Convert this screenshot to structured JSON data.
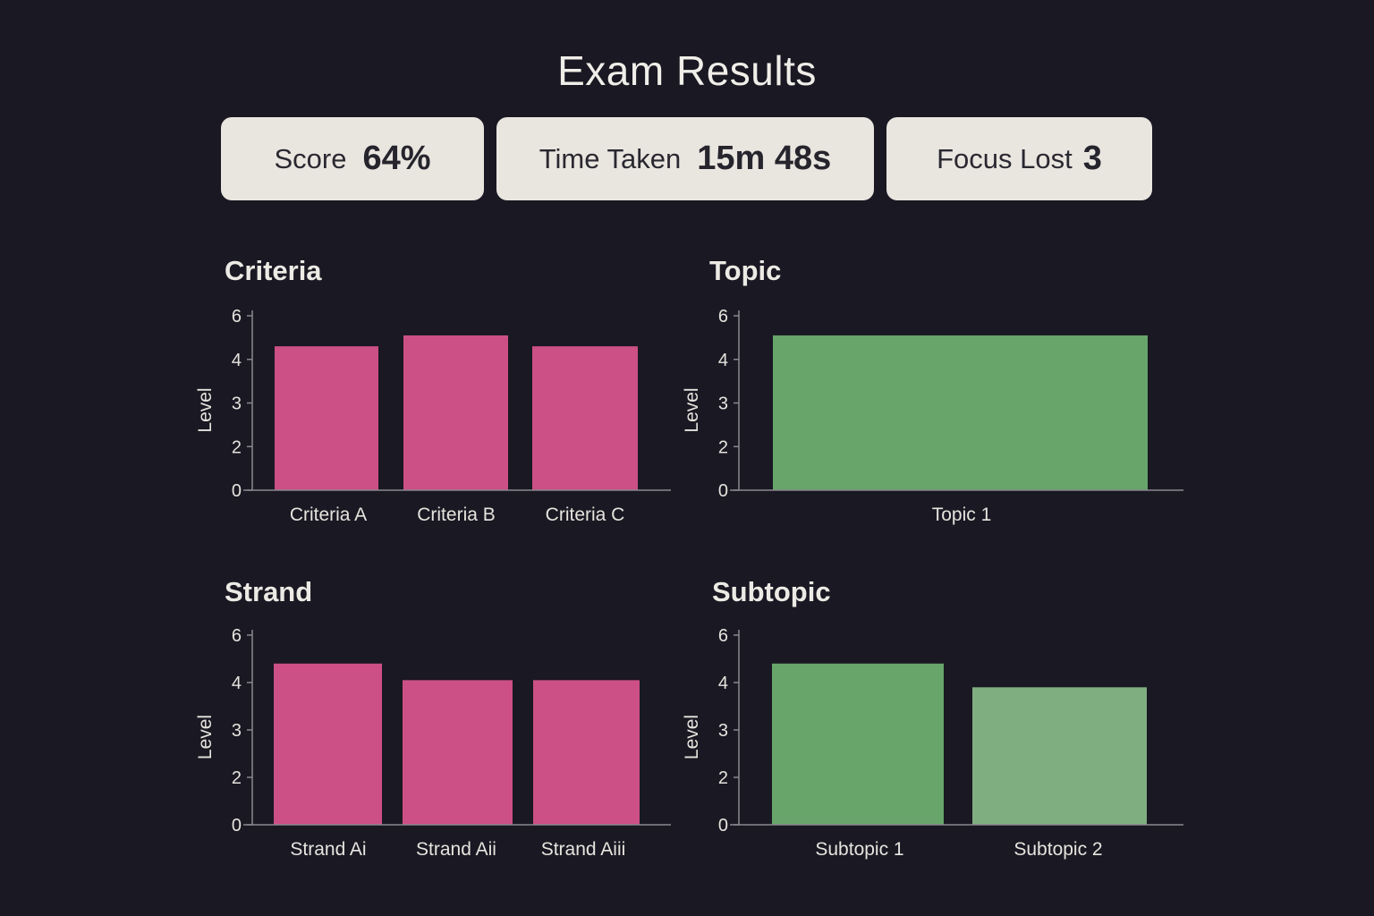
{
  "header": {
    "title": "Exam Results"
  },
  "stats": [
    {
      "label": "Score",
      "value": "64%"
    },
    {
      "label": "Time Taken",
      "value": "15m 48s"
    },
    {
      "label": "Focus Lost",
      "value": "3"
    }
  ],
  "colors": {
    "background": "#1a1822",
    "card": "#e9e6e0",
    "criteria_bar": "#cc4f86",
    "topic_bar": "#67a56a",
    "subtopic_bar_1": "#67a56a",
    "subtopic_bar_2": "#7fae80"
  },
  "chart_data": [
    {
      "type": "bar",
      "title": "Criteria",
      "xlabel": "",
      "ylabel": "Level",
      "y_ticks": [
        "0",
        "2",
        "3",
        "4",
        "6"
      ],
      "categories": [
        "Criteria A",
        "Criteria B",
        "Criteria C"
      ],
      "values": [
        4.6,
        5.1,
        4.6
      ],
      "color": "#cc4f86",
      "grid": false
    },
    {
      "type": "bar",
      "title": "Topic",
      "xlabel": "",
      "ylabel": "Level",
      "y_ticks": [
        "0",
        "2",
        "3",
        "4",
        "6"
      ],
      "categories": [
        "Topic 1"
      ],
      "values": [
        5.1
      ],
      "color": "#67a56a",
      "grid": false
    },
    {
      "type": "bar",
      "title": "Strand",
      "xlabel": "",
      "ylabel": "Level",
      "y_ticks": [
        "0",
        "2",
        "3",
        "4",
        "6"
      ],
      "categories": [
        "Strand Ai",
        "Strand Aii",
        "Strand Aiii"
      ],
      "values": [
        4.8,
        4.1,
        4.1
      ],
      "color": "#cc4f86",
      "grid": false
    },
    {
      "type": "bar",
      "title": "Subtopic",
      "xlabel": "",
      "ylabel": "Level",
      "y_ticks": [
        "0",
        "2",
        "3",
        "4",
        "6"
      ],
      "categories": [
        "Subtopic 1",
        "Subtopic 2"
      ],
      "values": [
        4.8,
        3.9
      ],
      "colors": [
        "#67a56a",
        "#7fae80"
      ],
      "grid": false
    }
  ]
}
